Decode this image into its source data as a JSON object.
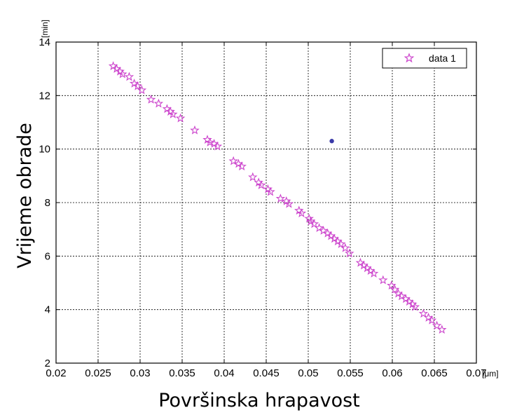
{
  "chart_data": {
    "type": "scatter",
    "xlabel": "Površinska hrapavost",
    "ylabel": "Vrijeme obrade",
    "x_unit": "[μm]",
    "y_unit": "[min]",
    "xlim": [
      0.02,
      0.07
    ],
    "ylim": [
      2,
      14
    ],
    "x_ticks": [
      "0.02",
      "0.025",
      "0.03",
      "0.035",
      "0.04",
      "0.045",
      "0.05",
      "0.055",
      "0.06",
      "0.065",
      "0.07"
    ],
    "y_ticks": [
      "2",
      "4",
      "6",
      "8",
      "10",
      "12",
      "14"
    ],
    "grid": true,
    "legend": {
      "position": "top-right",
      "entries": [
        "data 1"
      ]
    },
    "colors": {
      "series": "#cc44cc",
      "highlight": "#3a3aa8"
    },
    "series": [
      {
        "name": "data 1",
        "marker": "pentagram",
        "points": [
          [
            0.0268,
            13.1
          ],
          [
            0.0272,
            13.0
          ],
          [
            0.0276,
            12.9
          ],
          [
            0.0279,
            12.8
          ],
          [
            0.0287,
            12.7
          ],
          [
            0.0293,
            12.45
          ],
          [
            0.0297,
            12.35
          ],
          [
            0.0302,
            12.2
          ],
          [
            0.0313,
            11.85
          ],
          [
            0.0322,
            11.7
          ],
          [
            0.0332,
            11.5
          ],
          [
            0.0336,
            11.4
          ],
          [
            0.0339,
            11.3
          ],
          [
            0.0348,
            11.15
          ],
          [
            0.0365,
            10.7
          ],
          [
            0.038,
            10.35
          ],
          [
            0.0383,
            10.25
          ],
          [
            0.0388,
            10.2
          ],
          [
            0.0392,
            10.1
          ],
          [
            0.0411,
            9.55
          ],
          [
            0.0417,
            9.45
          ],
          [
            0.0421,
            9.35
          ],
          [
            0.0434,
            8.95
          ],
          [
            0.0441,
            8.75
          ],
          [
            0.0444,
            8.65
          ],
          [
            0.0452,
            8.5
          ],
          [
            0.0455,
            8.4
          ],
          [
            0.0467,
            8.15
          ],
          [
            0.0474,
            8.05
          ],
          [
            0.0477,
            7.95
          ],
          [
            0.0489,
            7.7
          ],
          [
            0.0492,
            7.6
          ],
          [
            0.0501,
            7.4
          ],
          [
            0.0503,
            7.3
          ],
          [
            0.0507,
            7.2
          ],
          [
            0.0513,
            7.05
          ],
          [
            0.0518,
            6.95
          ],
          [
            0.0523,
            6.85
          ],
          [
            0.0527,
            6.75
          ],
          [
            0.0531,
            6.65
          ],
          [
            0.0535,
            6.55
          ],
          [
            0.0539,
            6.45
          ],
          [
            0.0544,
            6.3
          ],
          [
            0.0549,
            6.1
          ],
          [
            0.0562,
            5.75
          ],
          [
            0.0566,
            5.65
          ],
          [
            0.057,
            5.55
          ],
          [
            0.0574,
            5.45
          ],
          [
            0.0578,
            5.35
          ],
          [
            0.0589,
            5.1
          ],
          [
            0.0599,
            4.9
          ],
          [
            0.0603,
            4.75
          ],
          [
            0.0607,
            4.6
          ],
          [
            0.0611,
            4.5
          ],
          [
            0.0616,
            4.4
          ],
          [
            0.062,
            4.3
          ],
          [
            0.0624,
            4.2
          ],
          [
            0.0627,
            4.1
          ],
          [
            0.0637,
            3.85
          ],
          [
            0.0643,
            3.7
          ],
          [
            0.0647,
            3.6
          ],
          [
            0.0653,
            3.4
          ],
          [
            0.0659,
            3.25
          ]
        ]
      },
      {
        "marker": "dot",
        "points": [
          [
            0.0528,
            10.3
          ]
        ]
      }
    ]
  }
}
